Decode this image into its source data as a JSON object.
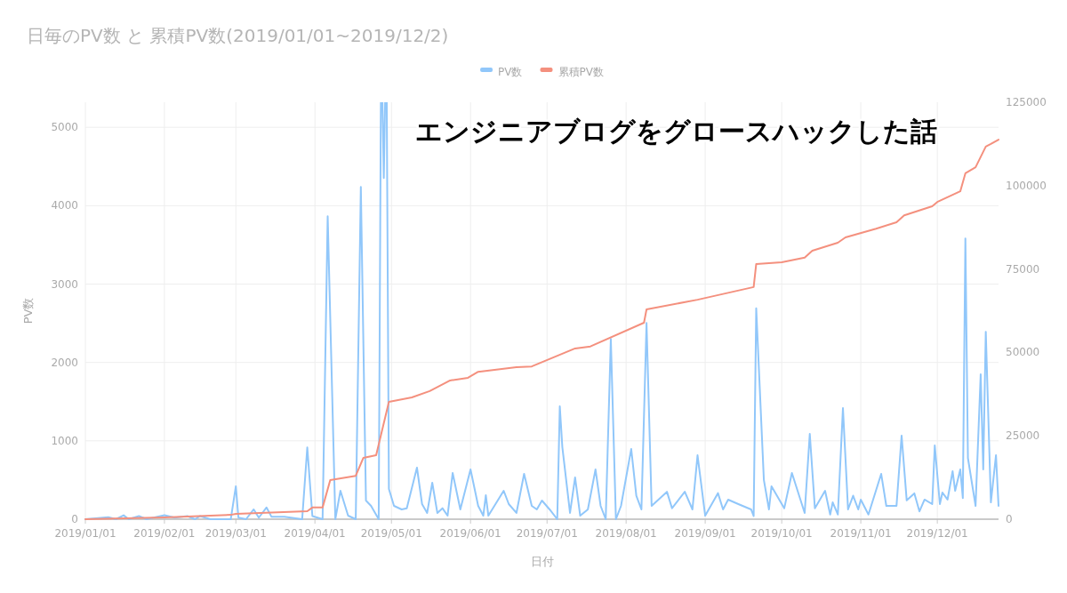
{
  "chart_data": {
    "type": "line",
    "title": "日毎のPV数 と 累積PV数(2019/01/01~2019/12/2)",
    "xlabel": "日付",
    "ylabel": "PV数",
    "annotations": [
      "エンジニアブログをグロースハックした話"
    ],
    "legend": "top",
    "grid": true,
    "xlim": [
      "2019-01-01",
      "2019-12-25"
    ],
    "xticks": [
      {
        "value": "2019-01-01",
        "label": "2019/01/01"
      },
      {
        "value": "2019-02-01",
        "label": "2019/02/01"
      },
      {
        "value": "2019-03-01",
        "label": "2019/03/01"
      },
      {
        "value": "2019-04-01",
        "label": "2019/04/01"
      },
      {
        "value": "2019-05-01",
        "label": "2019/05/01"
      },
      {
        "value": "2019-06-01",
        "label": "2019/06/01"
      },
      {
        "value": "2019-07-01",
        "label": "2019/07/01"
      },
      {
        "value": "2019-08-01",
        "label": "2019/08/01"
      },
      {
        "value": "2019-09-01",
        "label": "2019/09/01"
      },
      {
        "value": "2019-10-01",
        "label": "2019/10/01"
      },
      {
        "value": "2019-11-01",
        "label": "2019/11/01"
      },
      {
        "value": "2019-12-01",
        "label": "2019/12/01"
      }
    ],
    "ylim": [
      0,
      5320
    ],
    "yticks": [
      0,
      1000,
      2000,
      3000,
      4000,
      5000
    ],
    "y2lim": [
      0,
      125000
    ],
    "y2ticks": [
      0,
      25000,
      50000,
      75000,
      100000,
      125000
    ],
    "series": [
      {
        "name": "PV数",
        "color": "#91c7fa",
        "x": [
          "2019-01-01",
          "2019-01-10",
          "2019-01-13",
          "2019-01-16",
          "2019-01-18",
          "2019-01-22",
          "2019-01-25",
          "2019-02-01",
          "2019-02-05",
          "2019-02-10",
          "2019-02-13",
          "2019-02-15",
          "2019-02-19",
          "2019-02-27",
          "2019-03-01",
          "2019-03-02",
          "2019-03-05",
          "2019-03-08",
          "2019-03-10",
          "2019-03-13",
          "2019-03-15",
          "2019-03-20",
          "2019-03-27",
          "2019-03-29",
          "2019-03-31",
          "2019-04-04",
          "2019-04-06",
          "2019-04-09",
          "2019-04-11",
          "2019-04-14",
          "2019-04-17",
          "2019-04-19",
          "2019-04-21",
          "2019-04-23",
          "2019-04-26",
          "2019-04-27",
          "2019-04-28",
          "2019-04-29",
          "2019-04-30",
          "2019-05-02",
          "2019-05-05",
          "2019-05-07",
          "2019-05-11",
          "2019-05-13",
          "2019-05-15",
          "2019-05-17",
          "2019-05-19",
          "2019-05-21",
          "2019-05-23",
          "2019-05-25",
          "2019-05-28",
          "2019-06-01",
          "2019-06-04",
          "2019-06-06",
          "2019-06-07",
          "2019-06-08",
          "2019-06-14",
          "2019-06-16",
          "2019-06-19",
          "2019-06-22",
          "2019-06-25",
          "2019-06-27",
          "2019-06-29",
          "2019-07-02",
          "2019-07-05",
          "2019-07-06",
          "2019-07-07",
          "2019-07-10",
          "2019-07-12",
          "2019-07-14",
          "2019-07-17",
          "2019-07-20",
          "2019-07-22",
          "2019-07-24",
          "2019-07-26",
          "2019-07-28",
          "2019-07-30",
          "2019-08-03",
          "2019-08-05",
          "2019-08-07",
          "2019-08-09",
          "2019-08-11",
          "2019-08-17",
          "2019-08-19",
          "2019-08-24",
          "2019-08-27",
          "2019-08-29",
          "2019-09-01",
          "2019-09-06",
          "2019-09-08",
          "2019-09-10",
          "2019-09-14",
          "2019-09-19",
          "2019-09-20",
          "2019-09-21",
          "2019-09-24",
          "2019-09-26",
          "2019-09-27",
          "2019-10-02",
          "2019-10-05",
          "2019-10-10",
          "2019-10-12",
          "2019-10-14",
          "2019-10-18",
          "2019-10-20",
          "2019-10-21",
          "2019-10-23",
          "2019-10-25",
          "2019-10-27",
          "2019-10-29",
          "2019-10-31",
          "2019-11-01",
          "2019-11-04",
          "2019-11-09",
          "2019-11-11",
          "2019-11-15",
          "2019-11-17",
          "2019-11-19",
          "2019-11-22",
          "2019-11-24",
          "2019-11-26",
          "2019-11-29",
          "2019-11-30",
          "2019-12-02",
          "2019-12-03",
          "2019-12-05",
          "2019-12-07",
          "2019-12-08",
          "2019-12-10",
          "2019-12-11",
          "2019-12-12",
          "2019-12-13",
          "2019-12-16",
          "2019-12-18",
          "2019-12-19",
          "2019-12-20",
          "2019-12-22",
          "2019-12-24",
          "2019-12-25"
        ],
        "values": [
          0,
          25,
          0,
          50,
          0,
          40,
          0,
          50,
          20,
          40,
          0,
          40,
          0,
          0,
          420,
          20,
          0,
          125,
          20,
          150,
          30,
          30,
          0,
          915,
          40,
          0,
          3866,
          0,
          363,
          45,
          0,
          4240,
          238,
          170,
          0,
          null,
          4354,
          null,
          385,
          170,
          125,
          140,
          658,
          193,
          80,
          465,
          80,
          140,
          45,
          590,
          125,
          635,
          170,
          45,
          306,
          45,
          363,
          193,
          80,
          578,
          170,
          125,
          238,
          125,
          0,
          1440,
          918,
          80,
          533,
          45,
          125,
          635,
          170,
          0,
          2300,
          0,
          170,
          896,
          300,
          125,
          2505,
          170,
          350,
          140,
          350,
          125,
          816,
          45,
          333,
          125,
          250,
          193,
          125,
          40,
          2690,
          500,
          125,
          420,
          140,
          590,
          80,
          1088,
          140,
          363,
          60,
          215,
          60,
          1417,
          125,
          300,
          125,
          250,
          60,
          578,
          170,
          170,
          1066,
          240,
          330,
          100,
          250,
          193,
          941,
          193,
          340,
          250,
          612,
          363,
          635,
          270,
          3583,
          780,
          170,
          1848,
          635,
          2392,
          215,
          816,
          170
        ]
      },
      {
        "name": "累積PV数",
        "color": "#f4907e",
        "axis": "y2",
        "x": [
          "2019-01-01",
          "2019-02-01",
          "2019-02-27",
          "2019-03-01",
          "2019-03-29",
          "2019-03-31",
          "2019-04-04",
          "2019-04-07",
          "2019-04-17",
          "2019-04-20",
          "2019-04-25",
          "2019-04-30",
          "2019-05-09",
          "2019-05-16",
          "2019-05-24",
          "2019-05-31",
          "2019-06-04",
          "2019-06-19",
          "2019-06-25",
          "2019-07-12",
          "2019-07-18",
          "2019-08-08",
          "2019-08-09",
          "2019-08-29",
          "2019-09-20",
          "2019-09-21",
          "2019-10-01",
          "2019-10-10",
          "2019-10-13",
          "2019-10-23",
          "2019-10-26",
          "2019-11-07",
          "2019-11-15",
          "2019-11-18",
          "2019-11-29",
          "2019-12-01",
          "2019-12-10",
          "2019-12-12",
          "2019-12-16",
          "2019-12-20",
          "2019-12-22",
          "2019-12-25"
        ],
        "values": [
          0,
          500,
          1300,
          1600,
          2400,
          3500,
          3500,
          11700,
          13000,
          18400,
          19200,
          35200,
          36500,
          38400,
          41600,
          42400,
          44200,
          45600,
          45800,
          51200,
          51800,
          58900,
          62900,
          65800,
          69600,
          76500,
          77000,
          78400,
          80500,
          82900,
          84500,
          87100,
          89000,
          91100,
          93800,
          95100,
          98300,
          103700,
          105500,
          111700,
          112500,
          113800
        ]
      }
    ]
  }
}
